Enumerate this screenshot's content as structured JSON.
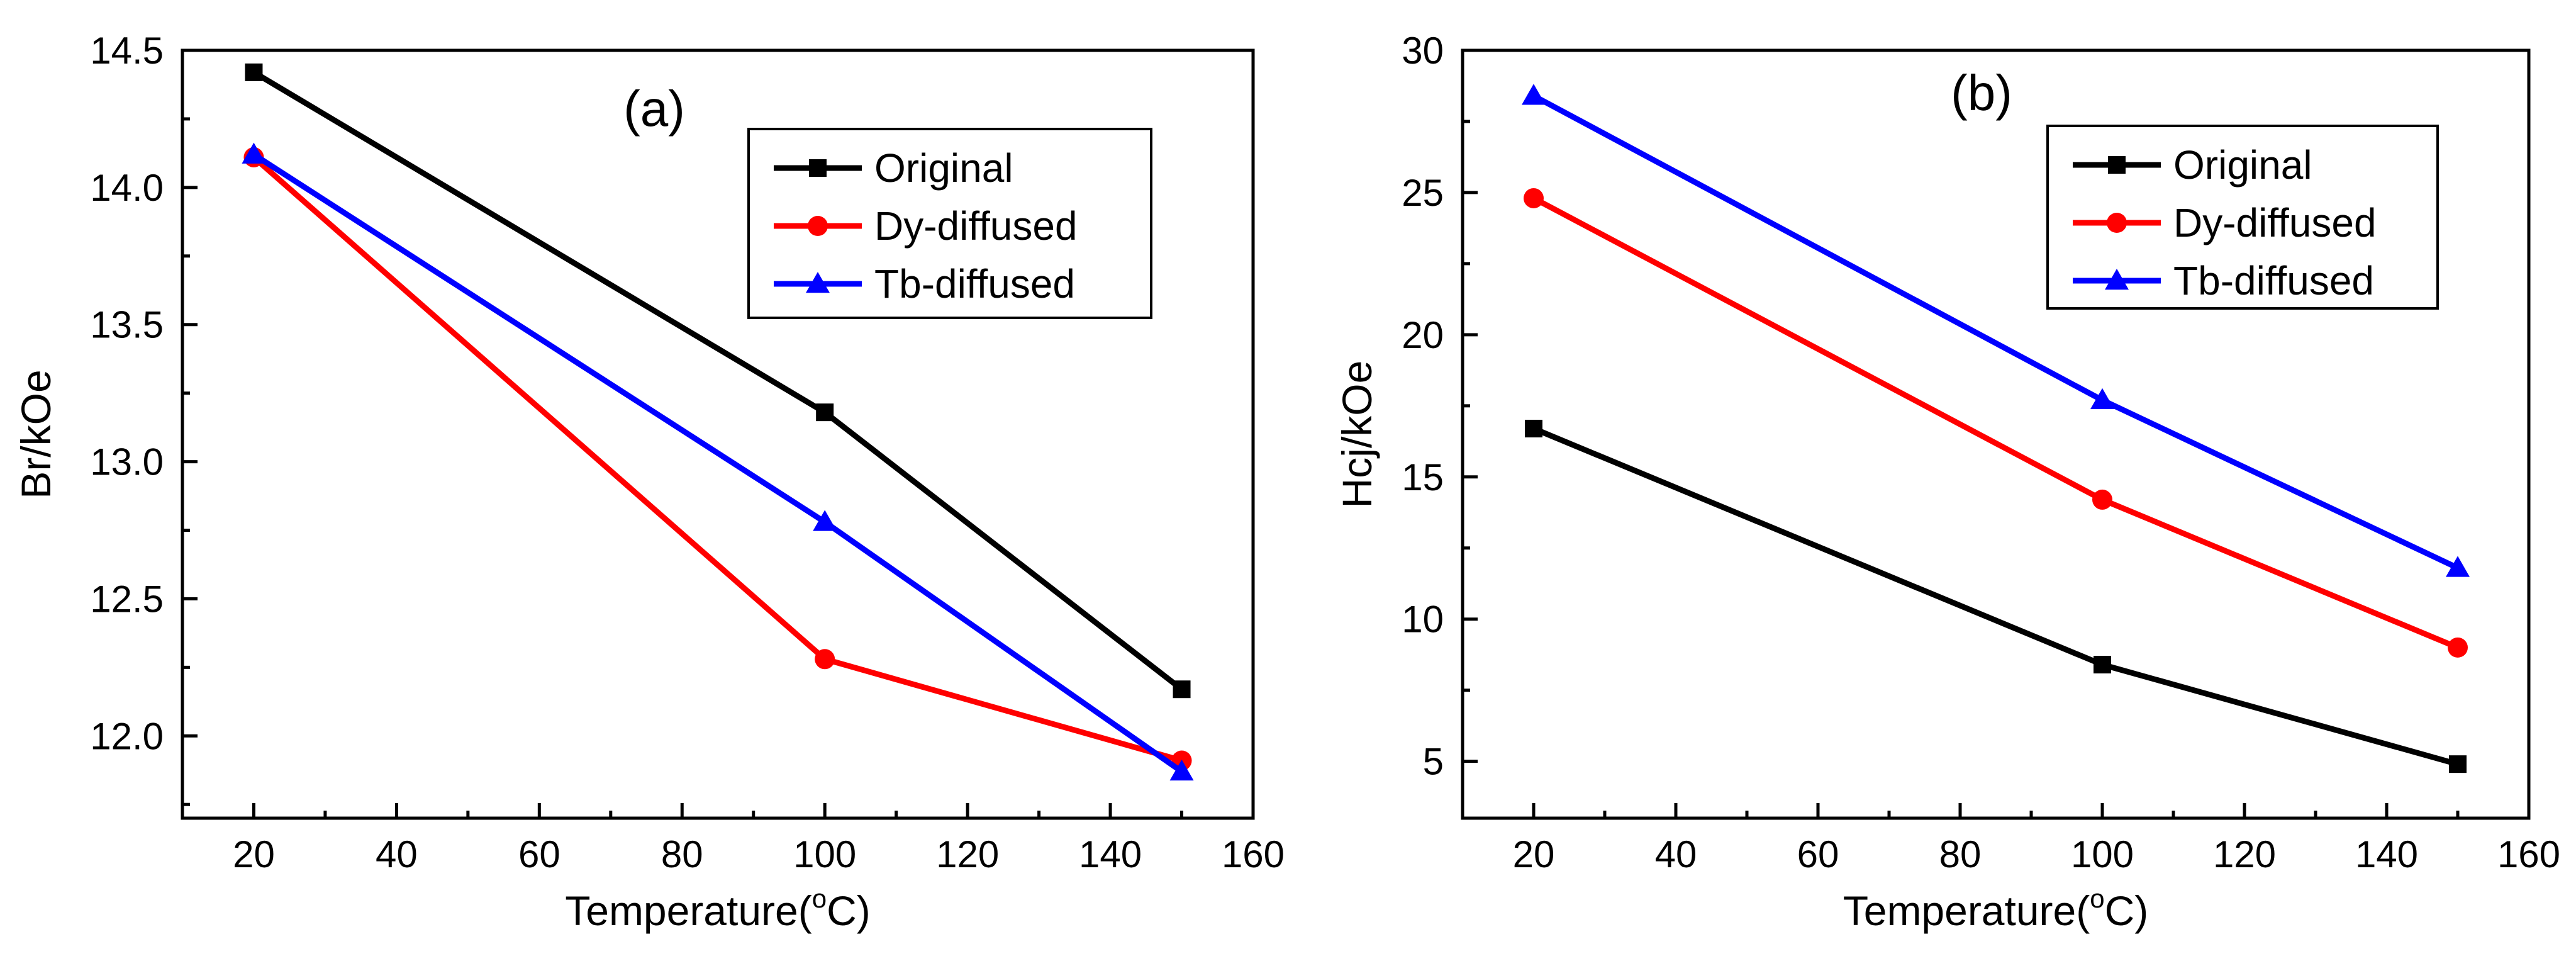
{
  "chart_data": [
    {
      "id": "a",
      "type": "line",
      "panel_label": "(a)",
      "xlabel": "Temperature",
      "xlabel_unit_sup": "o",
      "xlabel_unit": "C",
      "ylabel": "Br/kOe",
      "xlim": [
        10,
        160
      ],
      "ylim": [
        11.7,
        14.5
      ],
      "xticks": [
        20,
        40,
        60,
        80,
        100,
        120,
        140,
        160
      ],
      "yticks": [
        12.0,
        12.5,
        13.0,
        13.5,
        14.0,
        14.5
      ],
      "ytick_labels": [
        "12.0",
        "12.5",
        "13.0",
        "13.5",
        "14.0",
        "14.5"
      ],
      "x": [
        20,
        100,
        150
      ],
      "series": [
        {
          "name": "Original",
          "color": "#000000",
          "marker": "square",
          "values": [
            14.42,
            13.18,
            12.17
          ]
        },
        {
          "name": "Dy-diffused",
          "color": "#ff0000",
          "marker": "circle",
          "values": [
            14.11,
            12.28,
            11.91
          ]
        },
        {
          "name": "Tb-diffused",
          "color": "#0000ff",
          "marker": "triangle",
          "values": [
            14.12,
            12.78,
            11.87
          ]
        }
      ],
      "legend_position": "top-right"
    },
    {
      "id": "b",
      "type": "line",
      "panel_label": "(b)",
      "xlabel": "Temperature",
      "xlabel_unit_sup": "o",
      "xlabel_unit": "C",
      "ylabel": "Hcj/kOe",
      "xlim": [
        10,
        160
      ],
      "ylim": [
        3,
        30
      ],
      "xticks": [
        20,
        40,
        60,
        80,
        100,
        120,
        140,
        160
      ],
      "yticks": [
        5,
        10,
        15,
        20,
        25,
        30
      ],
      "ytick_labels": [
        "5",
        "10",
        "15",
        "20",
        "25",
        "30"
      ],
      "x": [
        20,
        100,
        150
      ],
      "series": [
        {
          "name": "Original",
          "color": "#000000",
          "marker": "square",
          "values": [
            16.7,
            8.4,
            4.9
          ]
        },
        {
          "name": "Dy-diffused",
          "color": "#ff0000",
          "marker": "circle",
          "values": [
            24.8,
            14.2,
            9.0
          ]
        },
        {
          "name": "Tb-diffused",
          "color": "#0000ff",
          "marker": "triangle",
          "values": [
            28.4,
            17.7,
            11.8
          ]
        }
      ],
      "legend_position": "top-right"
    }
  ]
}
